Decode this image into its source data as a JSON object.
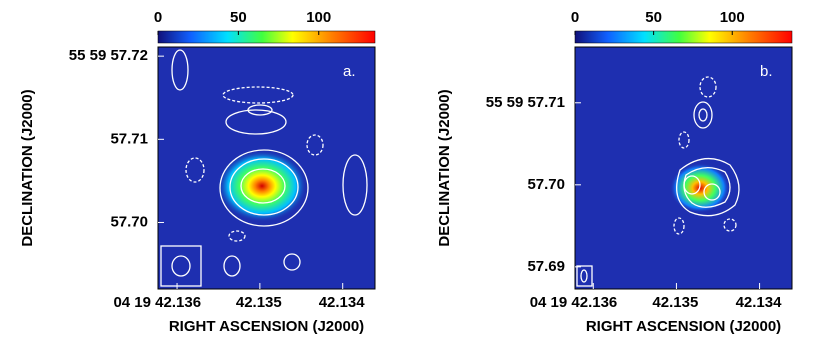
{
  "chart_data": [
    {
      "type": "image",
      "label": "a.",
      "xlabel": "RIGHT ASCENSION (J2000)",
      "ylabel": "DECLINATION (J2000)",
      "clim": [
        0,
        135
      ],
      "cticks": [
        0,
        50,
        100
      ],
      "xlim": [
        42.13623,
        42.13361
      ],
      "xticks": [
        {
          "value": 42.136,
          "label": "04 19 42.136"
        },
        42.135,
        42.134
      ],
      "ylim": [
        57.692,
        57.7211
      ],
      "yticks": [
        {
          "value": 57.72,
          "label": "55 59 57.72"
        },
        57.71,
        {
          "value": 57.7,
          "label": "57.70"
        }
      ]
    },
    {
      "type": "image",
      "label": "b.",
      "xlabel": "RIGHT ASCENSION (J2000)",
      "ylabel": "DECLINATION (J2000)",
      "clim": [
        0,
        138
      ],
      "cticks": [
        0,
        50,
        100
      ],
      "xlim": [
        42.13622,
        42.13361
      ],
      "xticks": [
        {
          "value": 42.136,
          "label": "04 19 42.136"
        },
        42.135,
        42.134
      ],
      "ylim": [
        57.6873,
        57.7168
      ],
      "yticks": [
        {
          "value": 57.71,
          "label": "55 59 57.71"
        },
        {
          "value": 57.7,
          "label": "57.70"
        },
        57.69
      ]
    }
  ]
}
